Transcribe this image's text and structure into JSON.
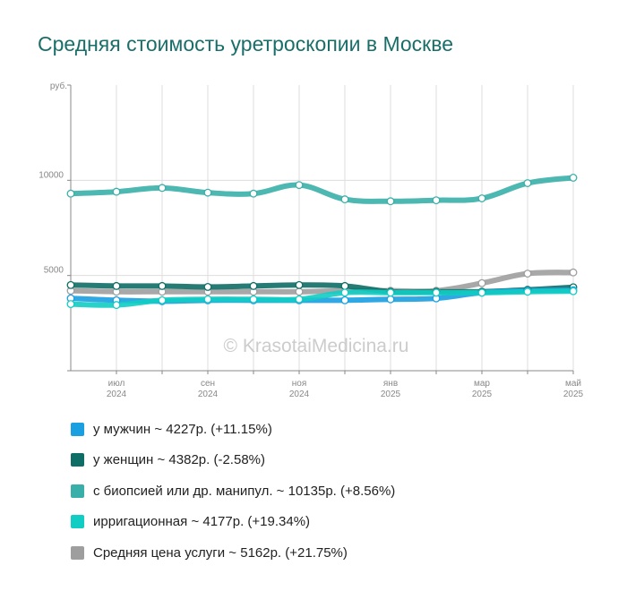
{
  "title": "Средняя стоимость уретроскопии в Москве",
  "watermark": "© KrasotaiMedicina.ru",
  "chart_data": {
    "type": "line",
    "y_unit": "руб.",
    "y_ticks": [
      "10000",
      "5000"
    ],
    "ylim": [
      0,
      15000
    ],
    "x_labels": [
      {
        "m": "июл",
        "y": "2024",
        "i": 1
      },
      {
        "m": "сен",
        "y": "2024",
        "i": 3
      },
      {
        "m": "ноя",
        "y": "2024",
        "i": 5
      },
      {
        "m": "янв",
        "y": "2025",
        "i": 7
      },
      {
        "m": "мар",
        "y": "2025",
        "i": 9
      },
      {
        "m": "май",
        "y": "2025",
        "i": 11
      }
    ],
    "grid": true,
    "series": [
      {
        "name": "у мужчин ~ 4227р. (+11.15%)",
        "color": "#1a9fe0",
        "values": [
          3800,
          3700,
          3650,
          3700,
          3700,
          3700,
          3700,
          3750,
          3800,
          4100,
          4200,
          4227
        ]
      },
      {
        "name": "у женщин ~ 4382р. (-2.58%)",
        "color": "#0e6e66",
        "values": [
          4500,
          4450,
          4450,
          4400,
          4450,
          4500,
          4450,
          4150,
          4150,
          4150,
          4250,
          4382
        ]
      },
      {
        "name": "с биопсией или др. манипул. ~ 10135р. (+8.56%)",
        "color": "#3aafa9",
        "values": [
          9300,
          9400,
          9600,
          9350,
          9300,
          9750,
          9000,
          8900,
          8950,
          9050,
          9850,
          10135
        ]
      },
      {
        "name": "ирригационная ~ 4177р. (+19.34%)",
        "color": "#12cdc3",
        "values": [
          3500,
          3450,
          3700,
          3750,
          3750,
          3750,
          4100,
          4100,
          4100,
          4100,
          4150,
          4177
        ]
      },
      {
        "name": "Средняя цена услуги ~ 5162р. (+21.75%)",
        "color": "#9e9e9e",
        "values": [
          4200,
          4150,
          4150,
          4150,
          4150,
          4150,
          4200,
          4200,
          4200,
          4600,
          5100,
          5162
        ]
      }
    ]
  }
}
